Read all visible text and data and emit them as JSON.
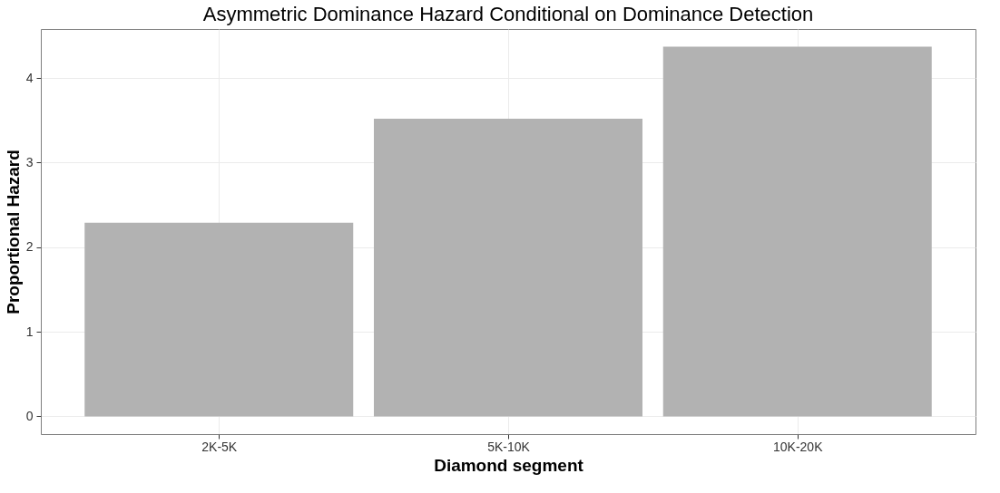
{
  "chart_data": {
    "type": "bar",
    "title": "Asymmetric Dominance Hazard Conditional on Dominance Detection",
    "xlabel": "Diamond segment",
    "ylabel": "Proportional Hazard",
    "categories": [
      "2K-5K",
      "5K-10K",
      "10K-20K"
    ],
    "values": [
      2.29,
      3.52,
      4.37
    ],
    "color": "#b2b2b2",
    "ylim": [
      -0.21,
      4.58
    ],
    "yticks": [
      0,
      1,
      2,
      3,
      4
    ],
    "grid": true
  }
}
